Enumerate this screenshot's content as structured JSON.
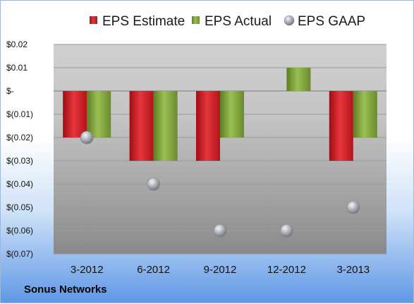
{
  "company": "Sonus Networks",
  "colors": {
    "estimate": "#d8232a",
    "actual": "#8aad3f",
    "gaap": "#b9bec6"
  },
  "chart_data": {
    "type": "bar",
    "categories": [
      "3-2012",
      "6-2012",
      "9-2012",
      "12-2012",
      "3-2013"
    ],
    "series": [
      {
        "name": "EPS Estimate",
        "type": "bar",
        "values": [
          -0.02,
          -0.03,
          -0.03,
          null,
          -0.03
        ]
      },
      {
        "name": "EPS Actual",
        "type": "bar",
        "values": [
          -0.02,
          -0.03,
          -0.02,
          0.01,
          -0.02
        ]
      },
      {
        "name": "EPS GAAP",
        "type": "scatter",
        "values": [
          -0.02,
          -0.04,
          -0.06,
          -0.06,
          -0.05
        ]
      }
    ],
    "ylim": [
      -0.07,
      0.02
    ],
    "yticks": [
      0.02,
      0.01,
      0,
      -0.01,
      -0.02,
      -0.03,
      -0.04,
      -0.05,
      -0.06,
      -0.07
    ],
    "ytick_labels": [
      "$0.02",
      "$0.01",
      "$-",
      "$(0.01)",
      "$(0.02)",
      "$(0.03)",
      "$(0.04)",
      "$(0.05)",
      "$(0.06)",
      "$(0.07)"
    ],
    "legend_position": "top",
    "grid": true
  }
}
